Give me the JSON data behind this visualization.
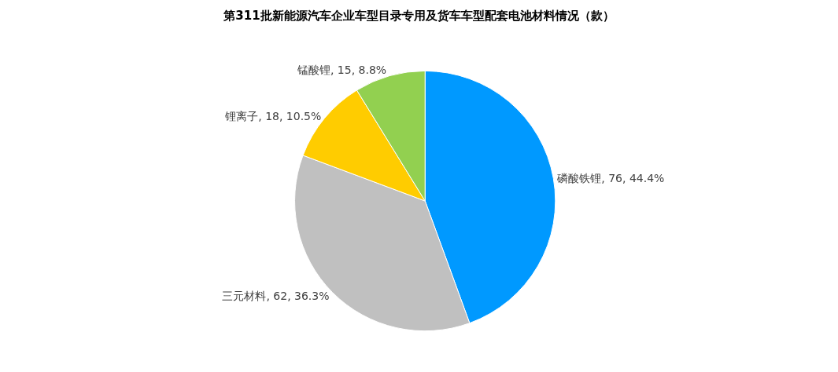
{
  "chart_data": {
    "type": "pie",
    "title": "第311批新能源汽车企业车型目录专用及货车车型配套电池材料情况（款）",
    "categories": [
      "磷酸铁锂",
      "三元材料",
      "锂离子",
      "锰酸锂"
    ],
    "values": [
      76,
      62,
      18,
      15
    ],
    "value_labels": [
      "76, 44.4%",
      "62, 36.3%",
      "18, 10.5%",
      "15, 8.8%"
    ],
    "colors": [
      "#0099ff",
      "#c0c0c0",
      "#ffcc00",
      "#92d050"
    ],
    "legend": false
  }
}
